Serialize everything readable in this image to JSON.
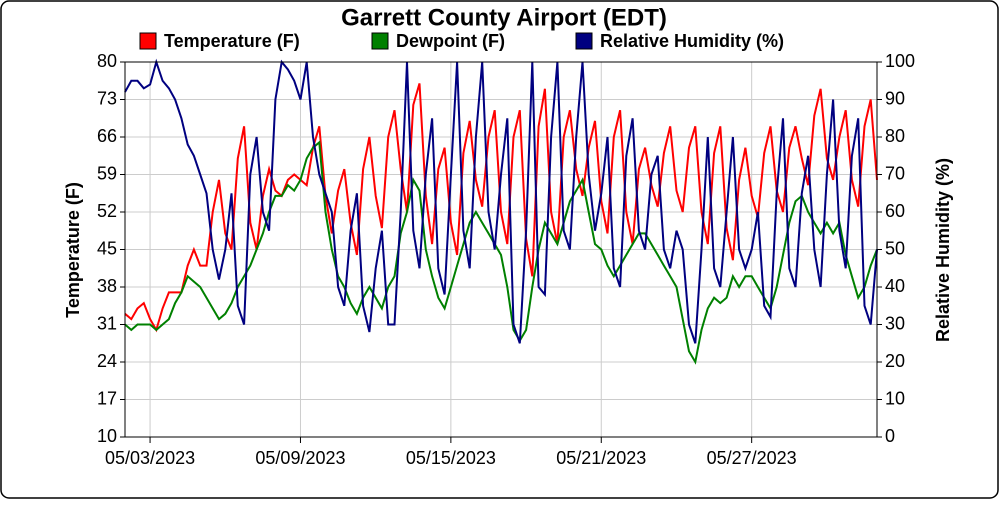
{
  "chart_data": {
    "type": "line",
    "title": "Garrett County Airport (EDT)",
    "y_label": "Temperature (F)",
    "y2_label": "Relative Humidity (%)",
    "x": [
      "2023-05-02T00:00",
      "2023-05-02T06:00",
      "2023-05-02T12:00",
      "2023-05-02T18:00",
      "2023-05-03T00:00",
      "2023-05-03T06:00",
      "2023-05-03T12:00",
      "2023-05-03T18:00",
      "2023-05-04T00:00",
      "2023-05-04T06:00",
      "2023-05-04T12:00",
      "2023-05-04T18:00",
      "2023-05-05T00:00",
      "2023-05-05T06:00",
      "2023-05-05T12:00",
      "2023-05-05T18:00",
      "2023-05-06T00:00",
      "2023-05-06T06:00",
      "2023-05-06T12:00",
      "2023-05-06T18:00",
      "2023-05-07T00:00",
      "2023-05-07T06:00",
      "2023-05-07T12:00",
      "2023-05-07T18:00",
      "2023-05-08T00:00",
      "2023-05-08T06:00",
      "2023-05-08T12:00",
      "2023-05-08T18:00",
      "2023-05-09T00:00",
      "2023-05-09T06:00",
      "2023-05-09T12:00",
      "2023-05-09T18:00",
      "2023-05-10T00:00",
      "2023-05-10T06:00",
      "2023-05-10T12:00",
      "2023-05-10T18:00",
      "2023-05-11T00:00",
      "2023-05-11T06:00",
      "2023-05-11T12:00",
      "2023-05-11T18:00",
      "2023-05-12T00:00",
      "2023-05-12T06:00",
      "2023-05-12T12:00",
      "2023-05-12T18:00",
      "2023-05-13T00:00",
      "2023-05-13T06:00",
      "2023-05-13T12:00",
      "2023-05-13T18:00",
      "2023-05-14T00:00",
      "2023-05-14T06:00",
      "2023-05-14T12:00",
      "2023-05-14T18:00",
      "2023-05-15T00:00",
      "2023-05-15T06:00",
      "2023-05-15T12:00",
      "2023-05-15T18:00",
      "2023-05-16T00:00",
      "2023-05-16T06:00",
      "2023-05-16T12:00",
      "2023-05-16T18:00",
      "2023-05-17T00:00",
      "2023-05-17T06:00",
      "2023-05-17T12:00",
      "2023-05-17T18:00",
      "2023-05-18T00:00",
      "2023-05-18T06:00",
      "2023-05-18T12:00",
      "2023-05-18T18:00",
      "2023-05-19T00:00",
      "2023-05-19T06:00",
      "2023-05-19T12:00",
      "2023-05-19T18:00",
      "2023-05-20T00:00",
      "2023-05-20T06:00",
      "2023-05-20T12:00",
      "2023-05-20T18:00",
      "2023-05-21T00:00",
      "2023-05-21T06:00",
      "2023-05-21T12:00",
      "2023-05-21T18:00",
      "2023-05-22T00:00",
      "2023-05-22T06:00",
      "2023-05-22T12:00",
      "2023-05-22T18:00",
      "2023-05-23T00:00",
      "2023-05-23T06:00",
      "2023-05-23T12:00",
      "2023-05-23T18:00",
      "2023-05-24T00:00",
      "2023-05-24T06:00",
      "2023-05-24T12:00",
      "2023-05-24T18:00",
      "2023-05-25T00:00",
      "2023-05-25T06:00",
      "2023-05-25T12:00",
      "2023-05-25T18:00",
      "2023-05-26T00:00",
      "2023-05-26T06:00",
      "2023-05-26T12:00",
      "2023-05-26T18:00",
      "2023-05-27T00:00",
      "2023-05-27T06:00",
      "2023-05-27T12:00",
      "2023-05-27T18:00",
      "2023-05-28T00:00",
      "2023-05-28T06:00",
      "2023-05-28T12:00",
      "2023-05-28T18:00",
      "2023-05-29T00:00",
      "2023-05-29T06:00",
      "2023-05-29T12:00",
      "2023-05-29T18:00",
      "2023-05-30T00:00",
      "2023-05-30T06:00",
      "2023-05-30T12:00",
      "2023-05-30T18:00",
      "2023-05-31T00:00",
      "2023-05-31T06:00",
      "2023-05-31T12:00",
      "2023-05-31T18:00",
      "2023-06-01T00:00"
    ],
    "series": [
      {
        "name": "Temperature (F)",
        "color": "#ff0000",
        "values": [
          33,
          32,
          34,
          35,
          32,
          30,
          34,
          37,
          37,
          37,
          42,
          45,
          42,
          42,
          52,
          58,
          48,
          45,
          62,
          68,
          50,
          45,
          55,
          60,
          56,
          55,
          58,
          59,
          58,
          57,
          64,
          68,
          55,
          48,
          56,
          60,
          50,
          44,
          60,
          66,
          55,
          49,
          66,
          71,
          60,
          52,
          72,
          76,
          55,
          46,
          60,
          64,
          50,
          44,
          63,
          69,
          58,
          53,
          66,
          71,
          52,
          46,
          66,
          71,
          47,
          40,
          68,
          75,
          52,
          46,
          66,
          71,
          60,
          55,
          64,
          69,
          54,
          48,
          66,
          71,
          52,
          46,
          60,
          64,
          57,
          53,
          63,
          68,
          56,
          52,
          64,
          68,
          52,
          46,
          63,
          68,
          49,
          43,
          58,
          64,
          55,
          51,
          63,
          68,
          56,
          52,
          64,
          68,
          62,
          57,
          70,
          75,
          62,
          58,
          66,
          71,
          58,
          53,
          68,
          73,
          58
        ]
      },
      {
        "name": "Dewpoint (F)",
        "color": "#008000",
        "values": [
          31,
          30,
          31,
          31,
          31,
          30,
          31,
          32,
          35,
          37,
          40,
          39,
          38,
          36,
          34,
          32,
          33,
          35,
          38,
          40,
          42,
          45,
          48,
          52,
          55,
          55,
          57,
          56,
          58,
          62,
          64,
          65,
          52,
          45,
          40,
          38,
          35,
          33,
          36,
          38,
          36,
          34,
          38,
          40,
          48,
          52,
          58,
          56,
          45,
          40,
          36,
          34,
          38,
          42,
          46,
          50,
          52,
          50,
          48,
          46,
          44,
          38,
          30,
          28,
          30,
          38,
          45,
          50,
          48,
          46,
          50,
          54,
          56,
          58,
          52,
          46,
          45,
          42,
          40,
          42,
          44,
          46,
          48,
          48,
          46,
          44,
          42,
          40,
          38,
          32,
          26,
          24,
          30,
          34,
          36,
          35,
          36,
          40,
          38,
          40,
          40,
          38,
          36,
          34,
          38,
          44,
          50,
          54,
          55,
          52,
          50,
          48,
          50,
          48,
          50,
          44,
          40,
          36,
          38,
          42,
          45
        ]
      },
      {
        "name": "Relative Humidity (%)",
        "color": "#000080",
        "axis": "y2",
        "values": [
          92,
          95,
          95,
          93,
          94,
          100,
          95,
          93,
          90,
          85,
          78,
          75,
          70,
          65,
          50,
          42,
          50,
          65,
          35,
          30,
          70,
          80,
          60,
          55,
          90,
          100,
          98,
          95,
          90,
          100,
          80,
          70,
          65,
          60,
          40,
          35,
          55,
          65,
          35,
          28,
          45,
          55,
          30,
          30,
          60,
          100,
          55,
          45,
          70,
          85,
          45,
          38,
          70,
          100,
          55,
          45,
          80,
          100,
          60,
          50,
          70,
          85,
          30,
          25,
          55,
          100,
          40,
          38,
          80,
          100,
          55,
          50,
          80,
          100,
          70,
          55,
          65,
          80,
          45,
          40,
          75,
          85,
          55,
          50,
          70,
          75,
          50,
          45,
          55,
          50,
          30,
          25,
          50,
          80,
          45,
          40,
          60,
          80,
          50,
          45,
          50,
          60,
          35,
          32,
          65,
          85,
          45,
          40,
          65,
          75,
          50,
          40,
          70,
          90,
          55,
          45,
          75,
          85,
          35,
          30,
          50
        ]
      }
    ],
    "xlim": [
      "2023-05-02T00:00",
      "2023-06-01T00:00"
    ],
    "xticks": [
      {
        "value": "2023-05-03T00:00",
        "label": "05/03/2023"
      },
      {
        "value": "2023-05-09T00:00",
        "label": "05/09/2023"
      },
      {
        "value": "2023-05-15T00:00",
        "label": "05/15/2023"
      },
      {
        "value": "2023-05-21T00:00",
        "label": "05/21/2023"
      },
      {
        "value": "2023-05-27T00:00",
        "label": "05/27/2023"
      }
    ],
    "ylim": [
      10,
      80
    ],
    "yticks": [
      10,
      17,
      24,
      31,
      38,
      45,
      52,
      59,
      66,
      73,
      80
    ],
    "y2lim": [
      0,
      100
    ],
    "y2ticks": [
      0,
      10,
      20,
      30,
      40,
      50,
      60,
      70,
      80,
      90,
      100
    ],
    "grid": true
  }
}
